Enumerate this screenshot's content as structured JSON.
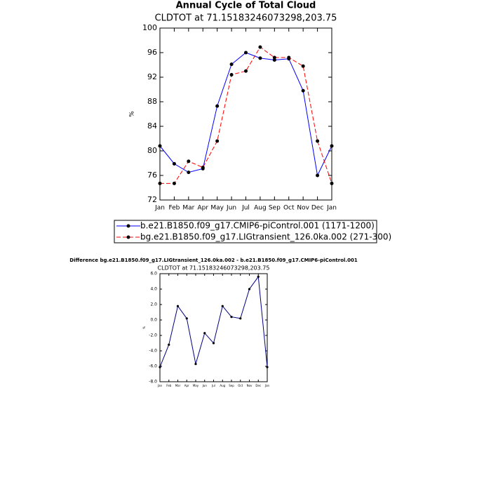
{
  "chart_data": [
    {
      "type": "line",
      "title": "Annual Cycle of Total Cloud",
      "subtitle": "CLDTOT at 71.15183246073298,203.75",
      "ylabel": "%",
      "categories": [
        "Jan",
        "Feb",
        "Mar",
        "Apr",
        "May",
        "Jun",
        "Jul",
        "Aug",
        "Sep",
        "Oct",
        "Nov",
        "Dec",
        "Jan"
      ],
      "series": [
        {
          "name": "b.e21.B1850.f09_g17.CMIP6-piControl.001 (1171-1200)",
          "color": "#0000ff",
          "dash": false,
          "values": [
            80.8,
            77.9,
            76.5,
            77.1,
            87.3,
            94.1,
            96.0,
            95.1,
            94.8,
            95.0,
            89.8,
            76.0,
            80.8
          ]
        },
        {
          "name": "bg.e21.B1850.f09_g17.LIGtransient_126.0ka.002 (271-300)",
          "color": "#ff0000",
          "dash": true,
          "values": [
            74.7,
            74.7,
            78.3,
            77.3,
            81.6,
            92.4,
            93.0,
            96.9,
            95.2,
            95.2,
            93.8,
            81.6,
            74.7
          ]
        }
      ],
      "ylim": [
        72,
        100
      ],
      "yticks": [
        72,
        76,
        80,
        84,
        88,
        92,
        96,
        100
      ]
    },
    {
      "type": "line",
      "title": "Difference bg.e21.B1850.f09_g17.LIGtransient_126.0ka.002 - b.e21.B1850.f09_g17.CMIP6-piControl.001",
      "subtitle": "CLDTOT at 71.15183246073298,203.75",
      "ylabel": "%",
      "categories": [
        "Jan",
        "Feb",
        "Mar",
        "Apr",
        "May",
        "Jun",
        "Jul",
        "Aug",
        "Sep",
        "Oct",
        "Nov",
        "Dec",
        "Jan"
      ],
      "series": [
        {
          "color": "#000080",
          "dash": false,
          "values": [
            -6.1,
            -3.2,
            1.8,
            0.2,
            -5.7,
            -1.7,
            -3.0,
            1.8,
            0.4,
            0.2,
            4.0,
            5.6,
            -6.1
          ]
        }
      ],
      "ylim": [
        -8,
        6
      ],
      "yticks": [
        {
          "value": -8,
          "label": "-8.0"
        },
        {
          "value": -6,
          "label": "-6.0"
        },
        {
          "value": -4,
          "label": "-4.0"
        },
        {
          "value": -2,
          "label": "-2.0"
        },
        {
          "value": 0,
          "label": "0.0"
        },
        {
          "value": 2,
          "label": "2.0"
        },
        {
          "value": 4,
          "label": "4.0"
        },
        {
          "value": 6,
          "label": "6.0"
        }
      ]
    }
  ]
}
